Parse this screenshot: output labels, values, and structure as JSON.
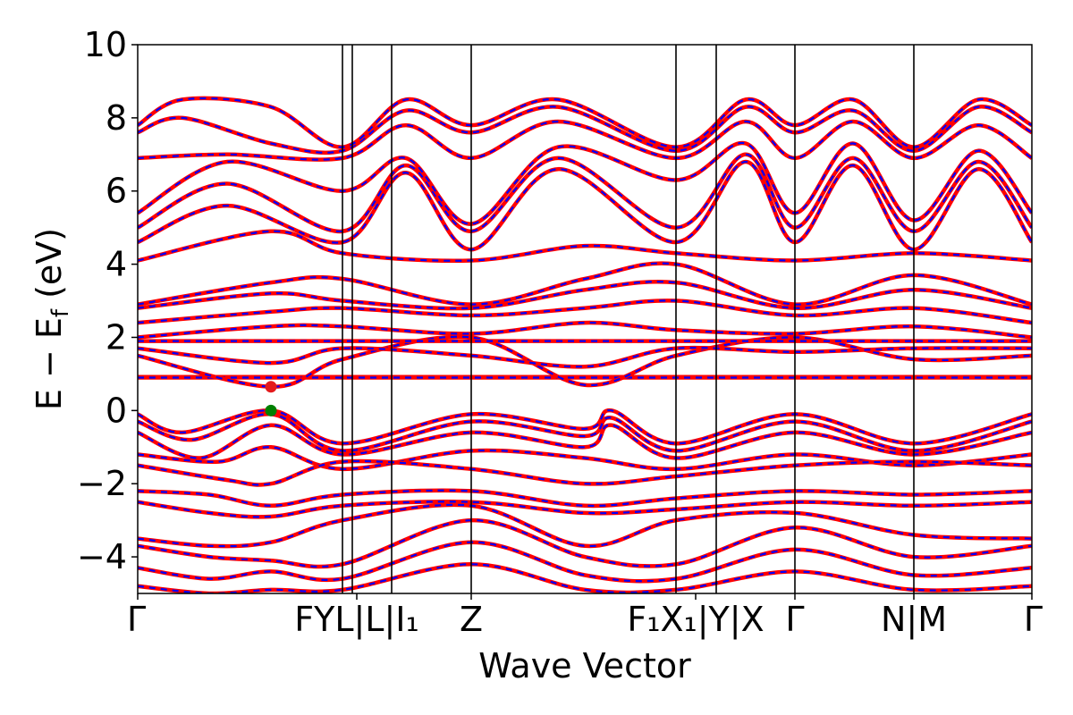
{
  "chart_data": {
    "type": "line",
    "title": "",
    "xlabel": "Wave Vector",
    "ylabel_main": "E − E",
    "ylabel_sub": "f",
    "ylabel_unit": " (eV)",
    "ylim": [
      -5,
      10
    ],
    "yticks": [
      -4,
      -2,
      0,
      2,
      4,
      6,
      8,
      10
    ],
    "ytick_labels": [
      "−4",
      "−2",
      "0",
      "2",
      "4",
      "6",
      "8",
      "10"
    ],
    "xlim": [
      0,
      1
    ],
    "kpoints": [
      {
        "x": 0.0,
        "label": "Γ"
      },
      {
        "x": 0.23,
        "label": "F"
      },
      {
        "x": 0.24,
        "label": "Y"
      },
      {
        "x": 0.284,
        "label": "|L| I₁"
      },
      {
        "x": 0.373,
        "label": "Z"
      },
      {
        "x": 0.602,
        "label": "F₁ X₁"
      },
      {
        "x": 0.647,
        "label": "| Y"
      },
      {
        "x": 0.735,
        "label": "| X"
      },
      {
        "x": 0.868,
        "label": "Γ"
      },
      {
        "x": 1.0,
        "label": "N | M"
      },
      {
        "x": 1.0,
        "label": "Γ"
      }
    ],
    "xtick_display": [
      {
        "x": 0.0,
        "label": "Γ"
      },
      {
        "x": 0.245,
        "label": "FYL|L|I₁"
      },
      {
        "x": 0.373,
        "label": "Z"
      },
      {
        "x": 0.624,
        "label": "F₁X₁|Y|X"
      },
      {
        "x": 0.735,
        "label": "Γ"
      },
      {
        "x": 0.868,
        "label": "N|M"
      },
      {
        "x": 1.0,
        "label": "Γ"
      }
    ],
    "vlines": [
      0.229,
      0.24,
      0.284,
      0.373,
      0.602,
      0.647,
      0.735,
      0.868
    ],
    "extrema": [
      {
        "name": "CBM",
        "x": 0.149,
        "y": 0.65,
        "color": "#e41a1c"
      },
      {
        "name": "VBM",
        "x": 0.149,
        "y": 0.0,
        "color": "#008000"
      }
    ],
    "series": [
      {
        "color": "#ff0000",
        "style": "solid"
      },
      {
        "color": "#0000ff",
        "style": "dashed"
      }
    ],
    "bands": [
      [
        [
          0,
          -0.1
        ],
        [
          0.05,
          -0.6
        ],
        [
          0.149,
          0.0
        ],
        [
          0.229,
          -0.9
        ],
        [
          0.373,
          -0.1
        ],
        [
          0.5,
          -0.5
        ],
        [
          0.53,
          -0.0
        ],
        [
          0.602,
          -0.9
        ],
        [
          0.735,
          -0.1
        ],
        [
          0.868,
          -0.9
        ],
        [
          1.0,
          -0.1
        ]
      ],
      [
        [
          0,
          -0.3
        ],
        [
          0.06,
          -0.8
        ],
        [
          0.149,
          -0.1
        ],
        [
          0.229,
          -1.1
        ],
        [
          0.373,
          -0.3
        ],
        [
          0.5,
          -0.7
        ],
        [
          0.53,
          -0.2
        ],
        [
          0.602,
          -1.1
        ],
        [
          0.735,
          -0.3
        ],
        [
          0.868,
          -1.1
        ],
        [
          1.0,
          -0.3
        ]
      ],
      [
        [
          0,
          -0.6
        ],
        [
          0.07,
          -1.3
        ],
        [
          0.149,
          -0.4
        ],
        [
          0.229,
          -1.2
        ],
        [
          0.373,
          -0.6
        ],
        [
          0.5,
          -1.0
        ],
        [
          0.53,
          -0.4
        ],
        [
          0.602,
          -1.3
        ],
        [
          0.735,
          -0.6
        ],
        [
          0.868,
          -1.2
        ],
        [
          1.0,
          -0.6
        ]
      ],
      [
        [
          0,
          -1.2
        ],
        [
          0.09,
          -1.4
        ],
        [
          0.149,
          -1.0
        ],
        [
          0.229,
          -1.6
        ],
        [
          0.373,
          -1.1
        ],
        [
          0.5,
          -1.3
        ],
        [
          0.602,
          -1.6
        ],
        [
          0.735,
          -1.2
        ],
        [
          0.868,
          -1.5
        ],
        [
          1.0,
          -1.2
        ]
      ],
      [
        [
          0,
          -1.5
        ],
        [
          0.1,
          -1.9
        ],
        [
          0.149,
          -2.0
        ],
        [
          0.229,
          -1.4
        ],
        [
          0.373,
          -1.6
        ],
        [
          0.5,
          -2.0
        ],
        [
          0.602,
          -1.8
        ],
        [
          0.735,
          -1.5
        ],
        [
          0.868,
          -1.4
        ],
        [
          1.0,
          -1.5
        ]
      ],
      [
        [
          0,
          -2.2
        ],
        [
          0.08,
          -2.3
        ],
        [
          0.149,
          -2.6
        ],
        [
          0.229,
          -2.3
        ],
        [
          0.373,
          -2.2
        ],
        [
          0.5,
          -2.6
        ],
        [
          0.602,
          -2.4
        ],
        [
          0.735,
          -2.2
        ],
        [
          0.868,
          -2.3
        ],
        [
          1.0,
          -2.2
        ]
      ],
      [
        [
          0,
          -2.5
        ],
        [
          0.08,
          -2.8
        ],
        [
          0.149,
          -2.9
        ],
        [
          0.229,
          -2.6
        ],
        [
          0.373,
          -2.5
        ],
        [
          0.5,
          -2.8
        ],
        [
          0.602,
          -2.7
        ],
        [
          0.735,
          -2.5
        ],
        [
          0.868,
          -2.6
        ],
        [
          1.0,
          -2.5
        ]
      ],
      [
        [
          0,
          -3.5
        ],
        [
          0.08,
          -3.7
        ],
        [
          0.149,
          -3.6
        ],
        [
          0.229,
          -3.0
        ],
        [
          0.373,
          -2.6
        ],
        [
          0.5,
          -3.7
        ],
        [
          0.602,
          -3.0
        ],
        [
          0.735,
          -2.8
        ],
        [
          0.868,
          -3.4
        ],
        [
          1.0,
          -3.5
        ]
      ],
      [
        [
          0,
          -3.7
        ],
        [
          0.08,
          -4.0
        ],
        [
          0.149,
          -4.1
        ],
        [
          0.229,
          -4.2
        ],
        [
          0.373,
          -3.0
        ],
        [
          0.5,
          -4.0
        ],
        [
          0.602,
          -4.2
        ],
        [
          0.735,
          -3.2
        ],
        [
          0.868,
          -4.0
        ],
        [
          1.0,
          -3.7
        ]
      ],
      [
        [
          0,
          -4.3
        ],
        [
          0.08,
          -4.6
        ],
        [
          0.149,
          -4.4
        ],
        [
          0.229,
          -4.6
        ],
        [
          0.373,
          -3.6
        ],
        [
          0.5,
          -4.5
        ],
        [
          0.602,
          -4.6
        ],
        [
          0.735,
          -3.8
        ],
        [
          0.868,
          -4.5
        ],
        [
          1.0,
          -4.3
        ]
      ],
      [
        [
          0,
          -4.8
        ],
        [
          0.08,
          -5.0
        ],
        [
          0.149,
          -4.9
        ],
        [
          0.229,
          -4.9
        ],
        [
          0.373,
          -4.2
        ],
        [
          0.5,
          -4.9
        ],
        [
          0.602,
          -4.9
        ],
        [
          0.735,
          -4.4
        ],
        [
          0.868,
          -4.9
        ],
        [
          1.0,
          -4.8
        ]
      ],
      [
        [
          0,
          0.92
        ],
        [
          0.2,
          0.92
        ],
        [
          0.4,
          0.92
        ],
        [
          0.6,
          0.92
        ],
        [
          0.8,
          0.92
        ],
        [
          1.0,
          0.92
        ]
      ],
      [
        [
          0,
          0.9
        ],
        [
          0.2,
          0.9
        ],
        [
          0.4,
          0.9
        ],
        [
          0.6,
          0.9
        ],
        [
          0.8,
          0.9
        ],
        [
          1.0,
          0.9
        ]
      ],
      [
        [
          0,
          1.5
        ],
        [
          0.149,
          0.65
        ],
        [
          0.229,
          1.4
        ],
        [
          0.373,
          2.0
        ],
        [
          0.5,
          0.7
        ],
        [
          0.602,
          1.5
        ],
        [
          0.735,
          2.0
        ],
        [
          0.868,
          1.4
        ],
        [
          1.0,
          1.5
        ]
      ],
      [
        [
          0,
          1.7
        ],
        [
          0.149,
          1.3
        ],
        [
          0.229,
          1.7
        ],
        [
          0.373,
          1.5
        ],
        [
          0.5,
          1.2
        ],
        [
          0.602,
          1.7
        ],
        [
          0.735,
          1.6
        ],
        [
          0.868,
          1.7
        ],
        [
          1.0,
          1.7
        ]
      ],
      [
        [
          0,
          1.9
        ],
        [
          0.149,
          1.9
        ],
        [
          0.229,
          1.9
        ],
        [
          0.373,
          1.9
        ],
        [
          0.5,
          1.9
        ],
        [
          0.602,
          1.9
        ],
        [
          0.735,
          1.9
        ],
        [
          0.868,
          1.9
        ],
        [
          1.0,
          1.9
        ]
      ],
      [
        [
          0,
          2.0
        ],
        [
          0.149,
          2.3
        ],
        [
          0.229,
          2.3
        ],
        [
          0.373,
          2.1
        ],
        [
          0.5,
          2.4
        ],
        [
          0.602,
          2.2
        ],
        [
          0.735,
          2.1
        ],
        [
          0.868,
          2.3
        ],
        [
          1.0,
          2.0
        ]
      ],
      [
        [
          0,
          2.4
        ],
        [
          0.149,
          2.7
        ],
        [
          0.229,
          2.8
        ],
        [
          0.373,
          2.6
        ],
        [
          0.5,
          2.8
        ],
        [
          0.602,
          3.0
        ],
        [
          0.735,
          2.6
        ],
        [
          0.868,
          2.8
        ],
        [
          1.0,
          2.4
        ]
      ],
      [
        [
          0,
          2.8
        ],
        [
          0.149,
          3.2
        ],
        [
          0.229,
          3.0
        ],
        [
          0.373,
          2.8
        ],
        [
          0.5,
          3.3
        ],
        [
          0.602,
          3.5
        ],
        [
          0.735,
          2.8
        ],
        [
          0.868,
          3.3
        ],
        [
          1.0,
          2.8
        ]
      ],
      [
        [
          0,
          2.9
        ],
        [
          0.149,
          3.5
        ],
        [
          0.229,
          3.6
        ],
        [
          0.373,
          2.9
        ],
        [
          0.5,
          3.6
        ],
        [
          0.602,
          4.0
        ],
        [
          0.735,
          2.9
        ],
        [
          0.868,
          3.7
        ],
        [
          1.0,
          2.9
        ]
      ],
      [
        [
          0,
          4.1
        ],
        [
          0.149,
          4.9
        ],
        [
          0.229,
          4.3
        ],
        [
          0.373,
          4.1
        ],
        [
          0.5,
          4.5
        ],
        [
          0.602,
          4.3
        ],
        [
          0.735,
          4.1
        ],
        [
          0.868,
          4.3
        ],
        [
          1.0,
          4.1
        ]
      ],
      [
        [
          0,
          4.6
        ],
        [
          0.1,
          5.6
        ],
        [
          0.229,
          4.6
        ],
        [
          0.3,
          6.5
        ],
        [
          0.373,
          4.4
        ],
        [
          0.47,
          6.6
        ],
        [
          0.602,
          4.6
        ],
        [
          0.68,
          6.8
        ],
        [
          0.735,
          4.6
        ],
        [
          0.8,
          6.7
        ],
        [
          0.868,
          4.4
        ],
        [
          0.94,
          6.6
        ],
        [
          1.0,
          4.6
        ]
      ],
      [
        [
          0,
          5.0
        ],
        [
          0.1,
          6.2
        ],
        [
          0.229,
          4.9
        ],
        [
          0.3,
          6.7
        ],
        [
          0.373,
          4.9
        ],
        [
          0.47,
          6.9
        ],
        [
          0.602,
          5.0
        ],
        [
          0.68,
          7.0
        ],
        [
          0.735,
          5.0
        ],
        [
          0.8,
          6.9
        ],
        [
          0.868,
          4.9
        ],
        [
          0.94,
          6.8
        ],
        [
          1.0,
          5.0
        ]
      ],
      [
        [
          0,
          5.4
        ],
        [
          0.1,
          6.8
        ],
        [
          0.229,
          6.0
        ],
        [
          0.3,
          6.9
        ],
        [
          0.373,
          5.1
        ],
        [
          0.47,
          7.2
        ],
        [
          0.602,
          6.3
        ],
        [
          0.68,
          7.3
        ],
        [
          0.735,
          5.4
        ],
        [
          0.8,
          7.3
        ],
        [
          0.868,
          5.2
        ],
        [
          0.94,
          7.1
        ],
        [
          1.0,
          5.4
        ]
      ],
      [
        [
          0,
          6.9
        ],
        [
          0.1,
          7.0
        ],
        [
          0.229,
          6.9
        ],
        [
          0.3,
          7.8
        ],
        [
          0.373,
          6.9
        ],
        [
          0.47,
          7.9
        ],
        [
          0.602,
          6.9
        ],
        [
          0.68,
          7.9
        ],
        [
          0.735,
          6.9
        ],
        [
          0.8,
          7.9
        ],
        [
          0.868,
          6.9
        ],
        [
          0.94,
          7.8
        ],
        [
          1.0,
          6.9
        ]
      ],
      [
        [
          0,
          7.6
        ],
        [
          0.05,
          8.0
        ],
        [
          0.149,
          7.3
        ],
        [
          0.229,
          7.1
        ],
        [
          0.3,
          8.2
        ],
        [
          0.373,
          7.6
        ],
        [
          0.47,
          8.3
        ],
        [
          0.602,
          7.1
        ],
        [
          0.68,
          8.3
        ],
        [
          0.735,
          7.6
        ],
        [
          0.8,
          8.2
        ],
        [
          0.868,
          7.1
        ],
        [
          0.94,
          8.3
        ],
        [
          1.0,
          7.6
        ]
      ],
      [
        [
          0,
          7.8
        ],
        [
          0.05,
          8.5
        ],
        [
          0.149,
          8.3
        ],
        [
          0.229,
          7.2
        ],
        [
          0.3,
          8.5
        ],
        [
          0.373,
          7.8
        ],
        [
          0.47,
          8.5
        ],
        [
          0.602,
          7.2
        ],
        [
          0.68,
          8.5
        ],
        [
          0.735,
          7.8
        ],
        [
          0.8,
          8.5
        ],
        [
          0.868,
          7.2
        ],
        [
          0.94,
          8.5
        ],
        [
          1.0,
          7.8
        ]
      ]
    ]
  }
}
